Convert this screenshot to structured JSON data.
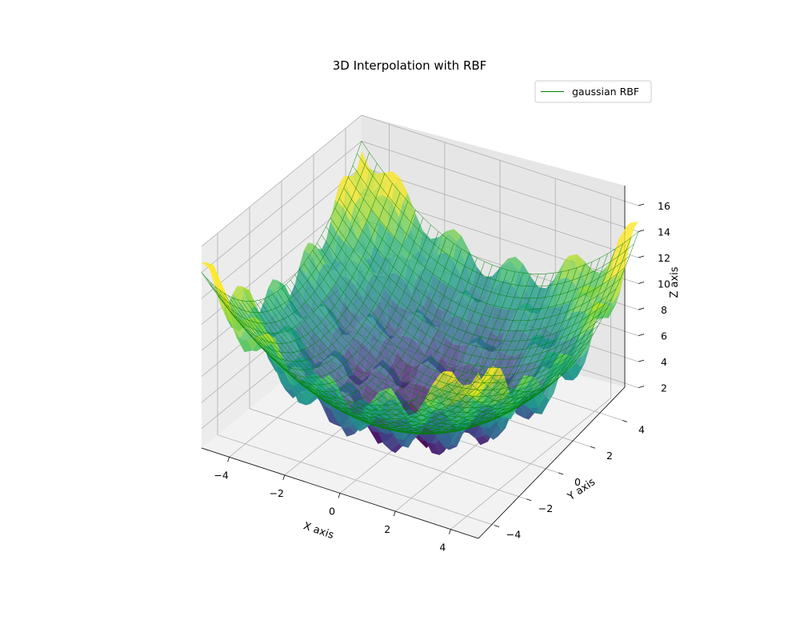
{
  "chart_data": {
    "type": "surface3d",
    "title": "3D Interpolation with RBF",
    "xlabel": "X axis",
    "ylabel": "Y axis",
    "zlabel": "Z axis",
    "xlim": [
      -5,
      5
    ],
    "ylim": [
      -5,
      5
    ],
    "zlim": [
      0.5,
      16
    ],
    "x_ticks": [
      -4,
      -2,
      0,
      2,
      4
    ],
    "y_ticks": [
      -4,
      -2,
      0,
      2,
      4
    ],
    "z_ticks": [
      2,
      4,
      6,
      8,
      10,
      12,
      14,
      16
    ],
    "grid": true,
    "legend_position": "top-right",
    "colormap": "viridis",
    "series": [
      {
        "name": "gaussian RBF",
        "style": "wireframe",
        "color": "#008000",
        "formula": "0.25*(x^2+y^2)+1.5",
        "z_min": 1.5,
        "z_max": 14
      },
      {
        "style": "surface",
        "colormap": "viridis",
        "formula": "0.25*(x^2+y^2)+1.5+sin(3x)*sin(3y)*1.8",
        "z_min": 0.5,
        "z_max": 16
      }
    ]
  }
}
